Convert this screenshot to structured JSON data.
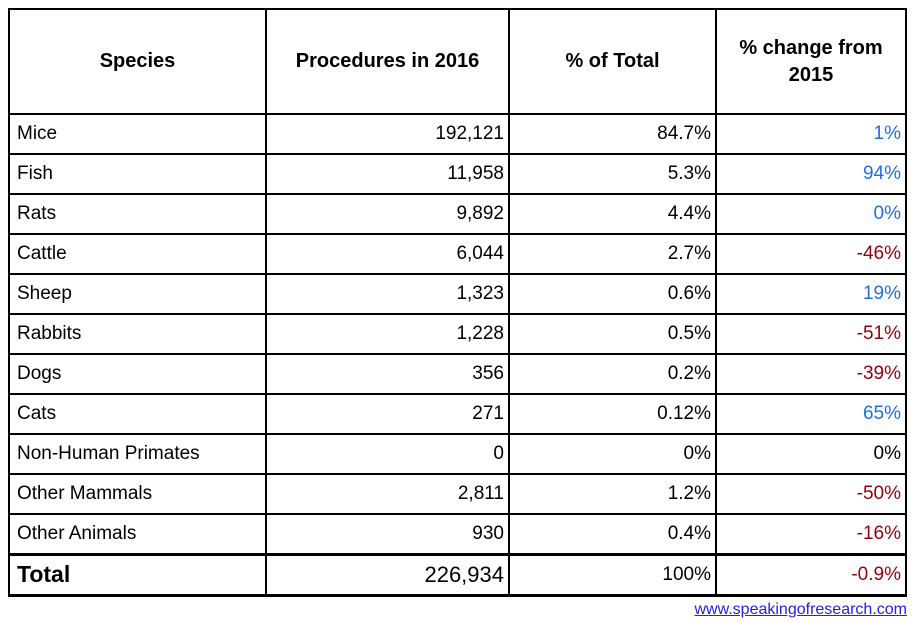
{
  "colors": {
    "positive_change": "#1f6fe0",
    "negative_change": "#97000f",
    "neutral_change": "#000000",
    "link": "#2222e0",
    "border": "#000000"
  },
  "table": {
    "headers": [
      "Species",
      "Procedures in 2016",
      "% of Total",
      "% change from 2015"
    ],
    "rows": [
      {
        "species": "Mice",
        "procedures": "192,121",
        "pct_total": "84.7%",
        "change": "1%",
        "change_color": "positive"
      },
      {
        "species": "Fish",
        "procedures": "11,958",
        "pct_total": "5.3%",
        "change": "94%",
        "change_color": "positive"
      },
      {
        "species": "Rats",
        "procedures": "9,892",
        "pct_total": "4.4%",
        "change": "0%",
        "change_color": "positive"
      },
      {
        "species": "Cattle",
        "procedures": "6,044",
        "pct_total": "2.7%",
        "change": "-46%",
        "change_color": "negative"
      },
      {
        "species": "Sheep",
        "procedures": "1,323",
        "pct_total": "0.6%",
        "change": "19%",
        "change_color": "positive"
      },
      {
        "species": "Rabbits",
        "procedures": "1,228",
        "pct_total": "0.5%",
        "change": "-51%",
        "change_color": "negative"
      },
      {
        "species": "Dogs",
        "procedures": "356",
        "pct_total": "0.2%",
        "change": "-39%",
        "change_color": "negative"
      },
      {
        "species": "Cats",
        "procedures": "271",
        "pct_total": "0.12%",
        "change": "65%",
        "change_color": "positive"
      },
      {
        "species": "Non-Human Primates",
        "procedures": "0",
        "pct_total": "0%",
        "change": "0%",
        "change_color": "neutral"
      },
      {
        "species": "Other Mammals",
        "procedures": "2,811",
        "pct_total": "1.2%",
        "change": "-50%",
        "change_color": "negative"
      },
      {
        "species": "Other Animals",
        "procedures": "930",
        "pct_total": "0.4%",
        "change": "-16%",
        "change_color": "negative"
      }
    ],
    "total": {
      "species": "Total",
      "procedures": "226,934",
      "pct_total": "100%",
      "change": "-0.9%",
      "change_color": "negative"
    }
  },
  "footer": {
    "link_text": "www.speakingofresearch.com"
  },
  "chart_data": {
    "type": "table",
    "title": "Animal research procedures in 2016 by species",
    "columns": [
      "Species",
      "Procedures in 2016",
      "% of Total",
      "% change from 2015"
    ],
    "categories": [
      "Mice",
      "Fish",
      "Rats",
      "Cattle",
      "Sheep",
      "Rabbits",
      "Dogs",
      "Cats",
      "Non-Human Primates",
      "Other Mammals",
      "Other Animals"
    ],
    "series": [
      {
        "name": "Procedures in 2016",
        "values": [
          192121,
          11958,
          9892,
          6044,
          1323,
          1228,
          356,
          271,
          0,
          2811,
          930
        ]
      },
      {
        "name": "% of Total",
        "values": [
          84.7,
          5.3,
          4.4,
          2.7,
          0.6,
          0.5,
          0.2,
          0.12,
          0,
          1.2,
          0.4
        ]
      },
      {
        "name": "% change from 2015",
        "values": [
          1,
          94,
          0,
          -46,
          19,
          -51,
          -39,
          65,
          0,
          -50,
          -16
        ]
      }
    ],
    "total_row": {
      "label": "Total",
      "procedures": 226934,
      "pct_total": 100,
      "change": -0.9
    },
    "source_link": "www.speakingofresearch.com"
  }
}
